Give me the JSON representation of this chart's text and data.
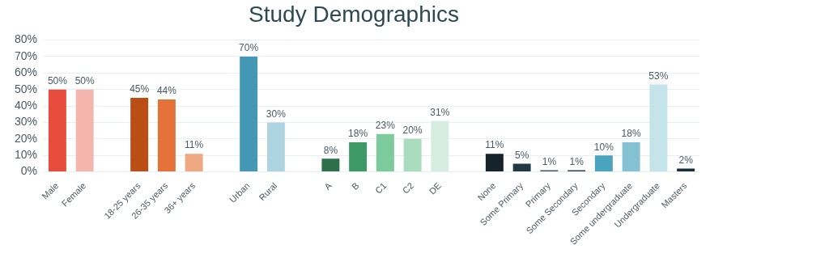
{
  "chart_data": {
    "type": "bar",
    "title": "Study Demographics",
    "categories": [
      "Male",
      "Female",
      null,
      "18-25 years",
      "26-35 years",
      "36+ years",
      null,
      "Urban",
      "Rural",
      null,
      "A",
      "B",
      "C1",
      "C2",
      "DE",
      null,
      "None",
      "Some Primary",
      "Primary",
      "Some Secondary",
      "Secondary",
      "Some undergraduate",
      "Undergraduate",
      "Masters"
    ],
    "values": [
      50,
      50,
      null,
      45,
      44,
      11,
      null,
      70,
      30,
      null,
      8,
      18,
      23,
      20,
      31,
      null,
      11,
      5,
      1,
      1,
      10,
      18,
      53,
      2
    ],
    "value_labels": [
      "50%",
      "50%",
      null,
      "45%",
      "44%",
      "11%",
      null,
      "70%",
      "30%",
      null,
      "8%",
      "18%",
      "23%",
      "20%",
      "31%",
      null,
      "11%",
      "5%",
      "1%",
      "1%",
      "10%",
      "18%",
      "53%",
      "2%"
    ],
    "colors": [
      "#e84c3d",
      "#f4b5ae",
      null,
      "#bb4e14",
      "#e57238",
      "#f0a883",
      null,
      "#4498b5",
      "#add4e0",
      null,
      "#2d7049",
      "#3d9965",
      "#7ccb9c",
      "#a9dcbd",
      "#d5eedf",
      null,
      "#15232a",
      "#1f3a42",
      "#3d5b63",
      "#2b454d",
      "#4aa3bf",
      "#84c1d3",
      "#c5e3ea",
      "#1b2e36"
    ],
    "ylim": [
      0,
      80
    ],
    "yticks": [
      {
        "value": 0,
        "label": "0%"
      },
      {
        "value": 10,
        "label": "10%"
      },
      {
        "value": 20,
        "label": "20%"
      },
      {
        "value": 30,
        "label": "30%"
      },
      {
        "value": 40,
        "label": "40%"
      },
      {
        "value": 50,
        "label": "50%"
      },
      {
        "value": 60,
        "label": "60%"
      },
      {
        "value": 70,
        "label": "70%"
      },
      {
        "value": 80,
        "label": "80%"
      }
    ],
    "grid": "y",
    "legend": false
  }
}
